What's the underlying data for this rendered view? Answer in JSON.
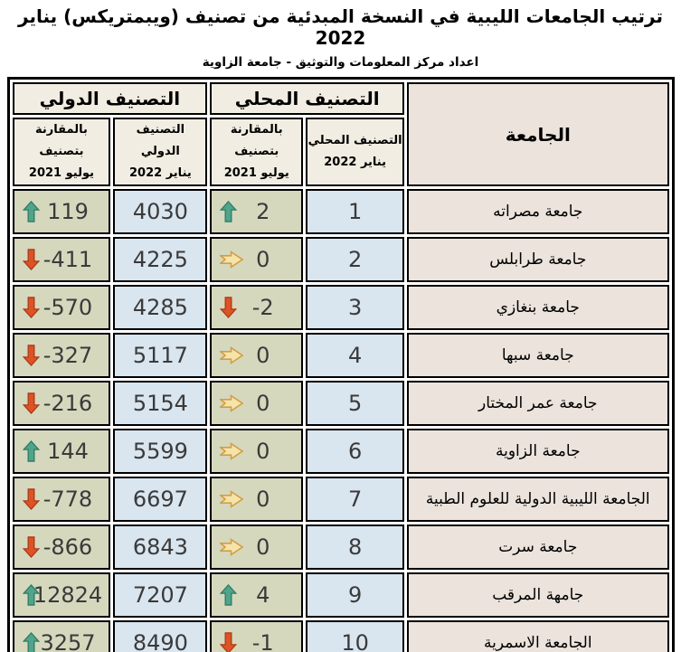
{
  "title": "ترتيب الجامعات الليبية في النسخة المبدئية من تصنيف (ويبمتريكس) يناير 2022",
  "subtitle": "اعداد مركز المعلومات والتوثيق - جامعة الزاوية",
  "table": {
    "header": {
      "university": "الجامعة",
      "local_group": "التصنيف المحلي",
      "intl_group": "التصنيف الدولي",
      "local_rank_line1": "التصنيف المحلي",
      "local_rank_line2": "يناير 2022",
      "local_compare_line1": "بالمقارنة بتصنيف",
      "local_compare_line2": "يوليو 2021",
      "intl_rank_line1": "التصنيف الدولي",
      "intl_rank_line2": "يناير 2022",
      "intl_compare_line1": "بالمقارنة بتصنيف",
      "intl_compare_line2": "يوليو 2021"
    },
    "rows": [
      {
        "university": "جامعة مصراته",
        "local_rank": "1",
        "local_change": "2",
        "local_dir": "up",
        "intl_rank": "4030",
        "intl_change": "119",
        "intl_dir": "up"
      },
      {
        "university": "جامعة طرابلس",
        "local_rank": "2",
        "local_change": "0",
        "local_dir": "right",
        "intl_rank": "4225",
        "intl_change": "-411",
        "intl_dir": "down"
      },
      {
        "university": "جامعة بنغازي",
        "local_rank": "3",
        "local_change": "-2",
        "local_dir": "down",
        "intl_rank": "4285",
        "intl_change": "-570",
        "intl_dir": "down"
      },
      {
        "university": "جامعة سبها",
        "local_rank": "4",
        "local_change": "0",
        "local_dir": "right",
        "intl_rank": "5117",
        "intl_change": "-327",
        "intl_dir": "down"
      },
      {
        "university": "جامعة عمر المختار",
        "local_rank": "5",
        "local_change": "0",
        "local_dir": "right",
        "intl_rank": "5154",
        "intl_change": "-216",
        "intl_dir": "down"
      },
      {
        "university": "جامعة الزاوية",
        "local_rank": "6",
        "local_change": "0",
        "local_dir": "right",
        "intl_rank": "5599",
        "intl_change": "144",
        "intl_dir": "up"
      },
      {
        "university": "الجامعة الليبية الدولية للعلوم الطبية",
        "local_rank": "7",
        "local_change": "0",
        "local_dir": "right",
        "intl_rank": "6697",
        "intl_change": "-778",
        "intl_dir": "down"
      },
      {
        "university": "جامعة سرت",
        "local_rank": "8",
        "local_change": "0",
        "local_dir": "right",
        "intl_rank": "6843",
        "intl_change": "-866",
        "intl_dir": "down"
      },
      {
        "university": "جامهة المرقب",
        "local_rank": "9",
        "local_change": "4",
        "local_dir": "up",
        "intl_rank": "7207",
        "intl_change": "12824",
        "intl_dir": "up"
      },
      {
        "university": "الجامعة الاسمرية",
        "local_rank": "10",
        "local_change": "-1",
        "local_dir": "down",
        "intl_rank": "8490",
        "intl_change": "3257",
        "intl_dir": "up"
      }
    ],
    "icons": {
      "up": "up-arrow-icon",
      "down": "down-arrow-icon",
      "right": "right-arrow-icon"
    },
    "colors": {
      "header_bg": "#F1EDE2",
      "university_bg": "#EBE3DC",
      "rank_bg": "#D9E5EF",
      "change_bg": "#D5D8BD",
      "border": "#000000",
      "number_text": "#3A3A3A",
      "arrow_up_fill": "#4FA48B",
      "arrow_up_stroke": "#2F7C63",
      "arrow_down_fill": "#DD5226",
      "arrow_down_stroke": "#A93C15",
      "arrow_right_fill": "#F5E3AC",
      "arrow_right_stroke": "#D29E44"
    }
  }
}
